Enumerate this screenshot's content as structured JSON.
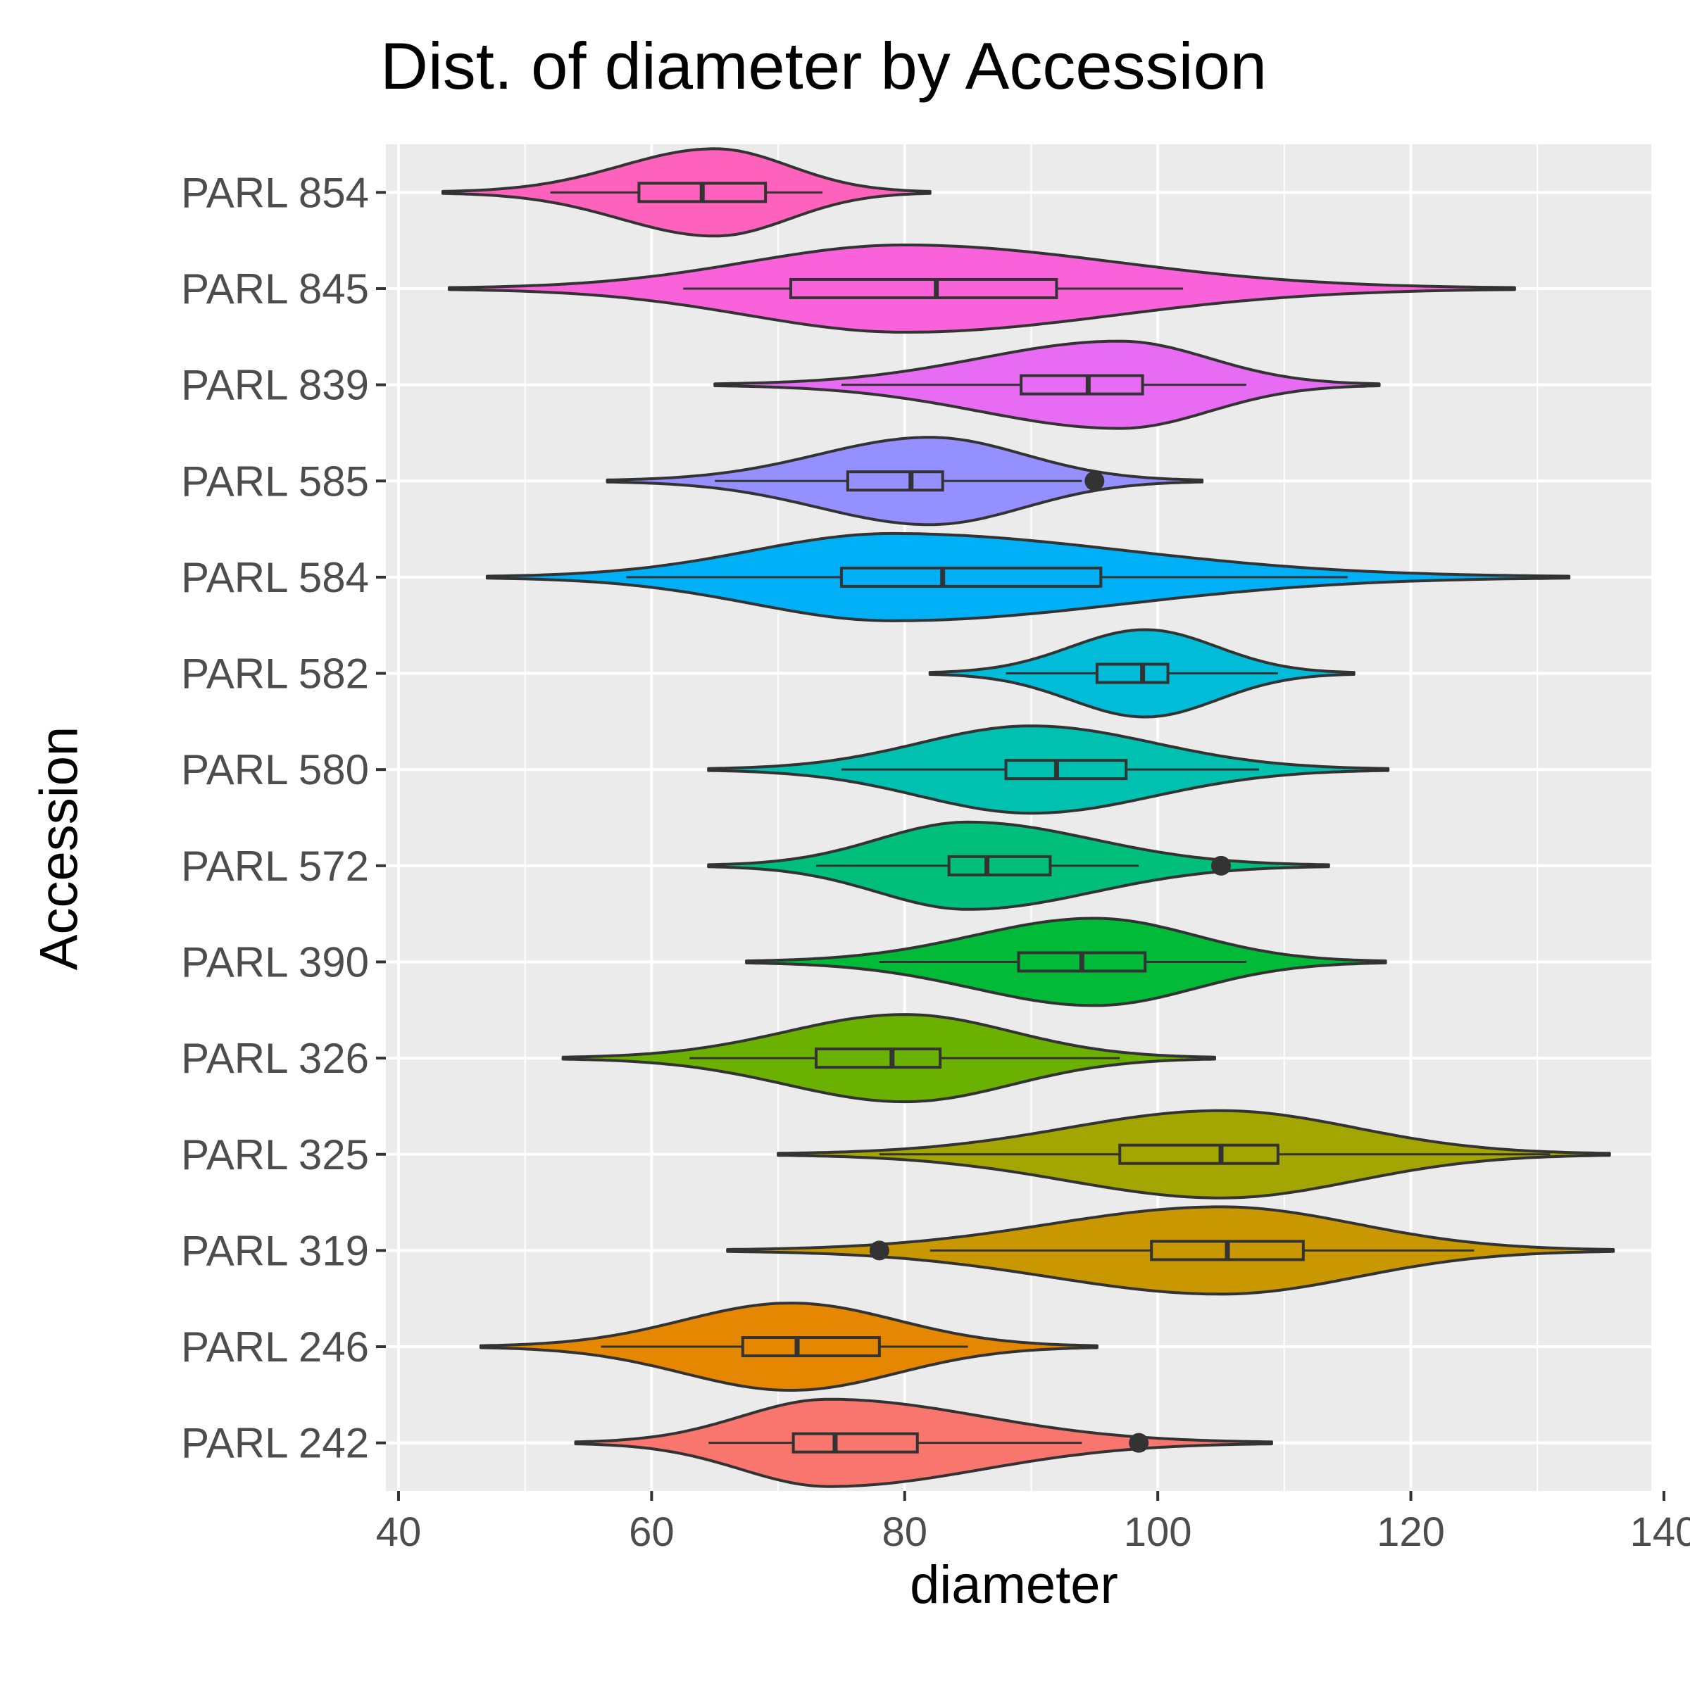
{
  "chart_data": {
    "type": "violin",
    "title": "Dist. of diameter by Accession",
    "xlabel": "diameter",
    "ylabel": "Accession",
    "xlim": [
      39,
      139
    ],
    "x_ticks": [
      40,
      60,
      80,
      100,
      120,
      140
    ],
    "grid": true,
    "categories": [
      "PARL 242",
      "PARL 246",
      "PARL 319",
      "PARL 325",
      "PARL 326",
      "PARL 390",
      "PARL 572",
      "PARL 580",
      "PARL 582",
      "PARL 584",
      "PARL 585",
      "PARL 839",
      "PARL 845",
      "PARL 854"
    ],
    "series": [
      {
        "category": "PARL 242",
        "color": "#F8766D",
        "min": 54,
        "max": 109,
        "peak": 74,
        "q1": 71.2,
        "median": 74.5,
        "q3": 81,
        "whisker_low": 64.5,
        "whisker_high": 94,
        "outliers": [
          98.5
        ]
      },
      {
        "category": "PARL 246",
        "color": "#E58700",
        "min": 46.5,
        "max": 95.2,
        "peak": 71,
        "q1": 67.2,
        "median": 71.5,
        "q3": 78,
        "whisker_low": 56,
        "whisker_high": 85,
        "outliers": []
      },
      {
        "category": "PARL 319",
        "color": "#C99800",
        "min": 66,
        "max": 136,
        "peak": 105,
        "q1": 99.5,
        "median": 105.5,
        "q3": 111.5,
        "whisker_low": 82,
        "whisker_high": 125,
        "outliers": [
          78
        ]
      },
      {
        "category": "PARL 325",
        "color": "#A3A500",
        "min": 70,
        "max": 135.7,
        "peak": 105,
        "q1": 97,
        "median": 105,
        "q3": 109.5,
        "whisker_low": 78,
        "whisker_high": 131,
        "outliers": []
      },
      {
        "category": "PARL 326",
        "color": "#6BB100",
        "min": 53,
        "max": 104.5,
        "peak": 80,
        "q1": 73,
        "median": 79,
        "q3": 82.8,
        "whisker_low": 63,
        "whisker_high": 97,
        "outliers": []
      },
      {
        "category": "PARL 390",
        "color": "#00BA38",
        "min": 67.5,
        "max": 118,
        "peak": 95,
        "q1": 89,
        "median": 94,
        "q3": 99,
        "whisker_low": 78,
        "whisker_high": 107,
        "outliers": []
      },
      {
        "category": "PARL 572",
        "color": "#00BF7D",
        "min": 64.5,
        "max": 113.5,
        "peak": 85,
        "q1": 83.5,
        "median": 86.5,
        "q3": 91.5,
        "whisker_low": 73,
        "whisker_high": 98.5,
        "outliers": [
          105
        ]
      },
      {
        "category": "PARL 580",
        "color": "#00C0AF",
        "min": 64.5,
        "max": 118.2,
        "peak": 90,
        "q1": 88,
        "median": 92,
        "q3": 97.5,
        "whisker_low": 75,
        "whisker_high": 108,
        "outliers": []
      },
      {
        "category": "PARL 582",
        "color": "#00BCD8",
        "min": 82,
        "max": 115.5,
        "peak": 99,
        "q1": 95.2,
        "median": 98.8,
        "q3": 100.8,
        "whisker_low": 88,
        "whisker_high": 109.5,
        "outliers": []
      },
      {
        "category": "PARL 584",
        "color": "#00B0F6",
        "min": 47,
        "max": 132.5,
        "peak": 79,
        "q1": 75,
        "median": 83,
        "q3": 95.5,
        "whisker_low": 58,
        "whisker_high": 115,
        "outliers": []
      },
      {
        "category": "PARL 585",
        "color": "#9590FF",
        "min": 56.5,
        "max": 103.5,
        "peak": 82,
        "q1": 75.5,
        "median": 80.5,
        "q3": 83,
        "whisker_low": 65,
        "whisker_high": 94,
        "outliers": [
          95
        ]
      },
      {
        "category": "PARL 839",
        "color": "#E76BF3",
        "min": 65,
        "max": 117.5,
        "peak": 97,
        "q1": 89.2,
        "median": 94.5,
        "q3": 98.8,
        "whisker_low": 75,
        "whisker_high": 107,
        "outliers": []
      },
      {
        "category": "PARL 845",
        "color": "#FA62DB",
        "min": 44,
        "max": 128.2,
        "peak": 80,
        "q1": 71,
        "median": 82.5,
        "q3": 92,
        "whisker_low": 62.5,
        "whisker_high": 102,
        "outliers": []
      },
      {
        "category": "PARL 854",
        "color": "#FF62BC",
        "min": 43.5,
        "max": 82,
        "peak": 65,
        "q1": 59,
        "median": 64,
        "q3": 69,
        "whisker_low": 52,
        "whisker_high": 73.5,
        "outliers": []
      }
    ]
  }
}
